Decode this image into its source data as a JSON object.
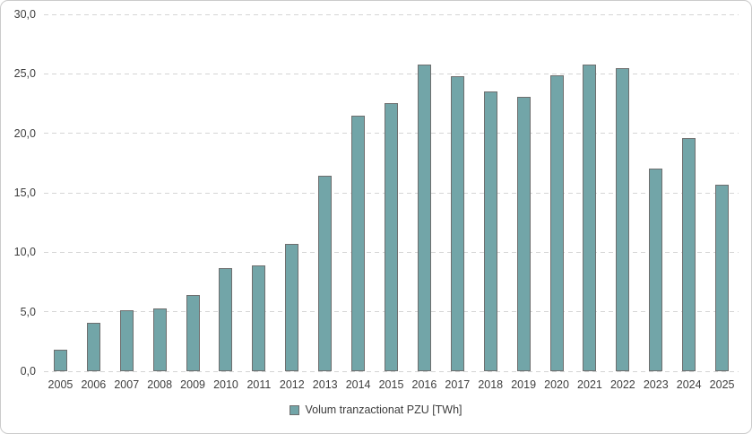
{
  "chart_data": {
    "type": "bar",
    "title": "",
    "legend": "Volum tranzactionat PZU [TWh]",
    "legend_position": "bottom",
    "categories": [
      "2005",
      "2006",
      "2007",
      "2008",
      "2009",
      "2010",
      "2011",
      "2012",
      "2013",
      "2014",
      "2015",
      "2016",
      "2017",
      "2018",
      "2019",
      "2020",
      "2021",
      "2022",
      "2023",
      "2024",
      "2025"
    ],
    "values": [
      1.8,
      4.1,
      5.1,
      5.3,
      6.4,
      8.7,
      8.9,
      10.7,
      16.4,
      21.5,
      22.5,
      25.8,
      24.8,
      23.5,
      23.1,
      24.9,
      25.8,
      25.5,
      17.0,
      19.6,
      15.7
    ],
    "xlabel": "",
    "ylabel": "",
    "ylim": [
      0,
      30
    ],
    "yticks": [
      {
        "value": 0,
        "label": "0,0"
      },
      {
        "value": 5,
        "label": "5,0"
      },
      {
        "value": 10,
        "label": "10,0"
      },
      {
        "value": 15,
        "label": "15,0"
      },
      {
        "value": 20,
        "label": "20,0"
      },
      {
        "value": 25,
        "label": "25,0"
      },
      {
        "value": 30,
        "label": "30,0"
      }
    ],
    "grid": "horizontal-dashed",
    "number_format": "decimal-comma",
    "colors": {
      "bar_fill": "#72a5a8",
      "bar_border": "#6e6e6e",
      "gridline": "#d5d5d5",
      "axis_text": "#3f3f3f",
      "frame_border": "#cbcbcb",
      "background": "#ffffff"
    }
  }
}
